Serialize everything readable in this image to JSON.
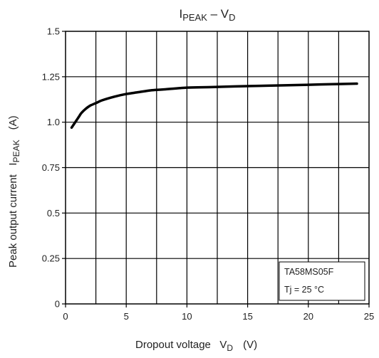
{
  "chart_data": {
    "type": "line",
    "title_main": "I",
    "title_sub1": "PEAK",
    "title_mid": " – V",
    "title_sub2": "D",
    "xlabel_main": "Dropout voltage   V",
    "xlabel_sub": "D",
    "xlabel_unit": "(V)",
    "ylabel_main": "Peak output current   I",
    "ylabel_sub": "PEAK",
    "ylabel_unit": "(A)",
    "xlim": [
      0,
      25
    ],
    "ylim": [
      0,
      1.5
    ],
    "x_ticks": [
      0,
      5,
      10,
      15,
      20,
      25
    ],
    "x_tick_labels": [
      "0",
      "5",
      "10",
      "15",
      "20",
      "25"
    ],
    "y_ticks": [
      0,
      0.25,
      0.5,
      0.75,
      1.0,
      1.25,
      1.5
    ],
    "y_tick_labels": [
      "0",
      "0.25",
      "0.5",
      "0.75",
      "1.0",
      "1.25",
      "1.5"
    ],
    "x_minor_step": 2.5,
    "grid": true,
    "annotation": [
      "TA58MS05F",
      "Tj = 25 °C"
    ],
    "series": [
      {
        "x": [
          0.5,
          0.7,
          0.9,
          1.1,
          1.3,
          1.6,
          2.0,
          2.5,
          3,
          4,
          5,
          6,
          7,
          8,
          10,
          12,
          14,
          16,
          18,
          20,
          22,
          24
        ],
        "y": [
          0.97,
          0.99,
          1.01,
          1.03,
          1.05,
          1.07,
          1.09,
          1.105,
          1.12,
          1.14,
          1.155,
          1.165,
          1.175,
          1.18,
          1.19,
          1.193,
          1.197,
          1.2,
          1.203,
          1.206,
          1.209,
          1.212
        ]
      }
    ]
  }
}
